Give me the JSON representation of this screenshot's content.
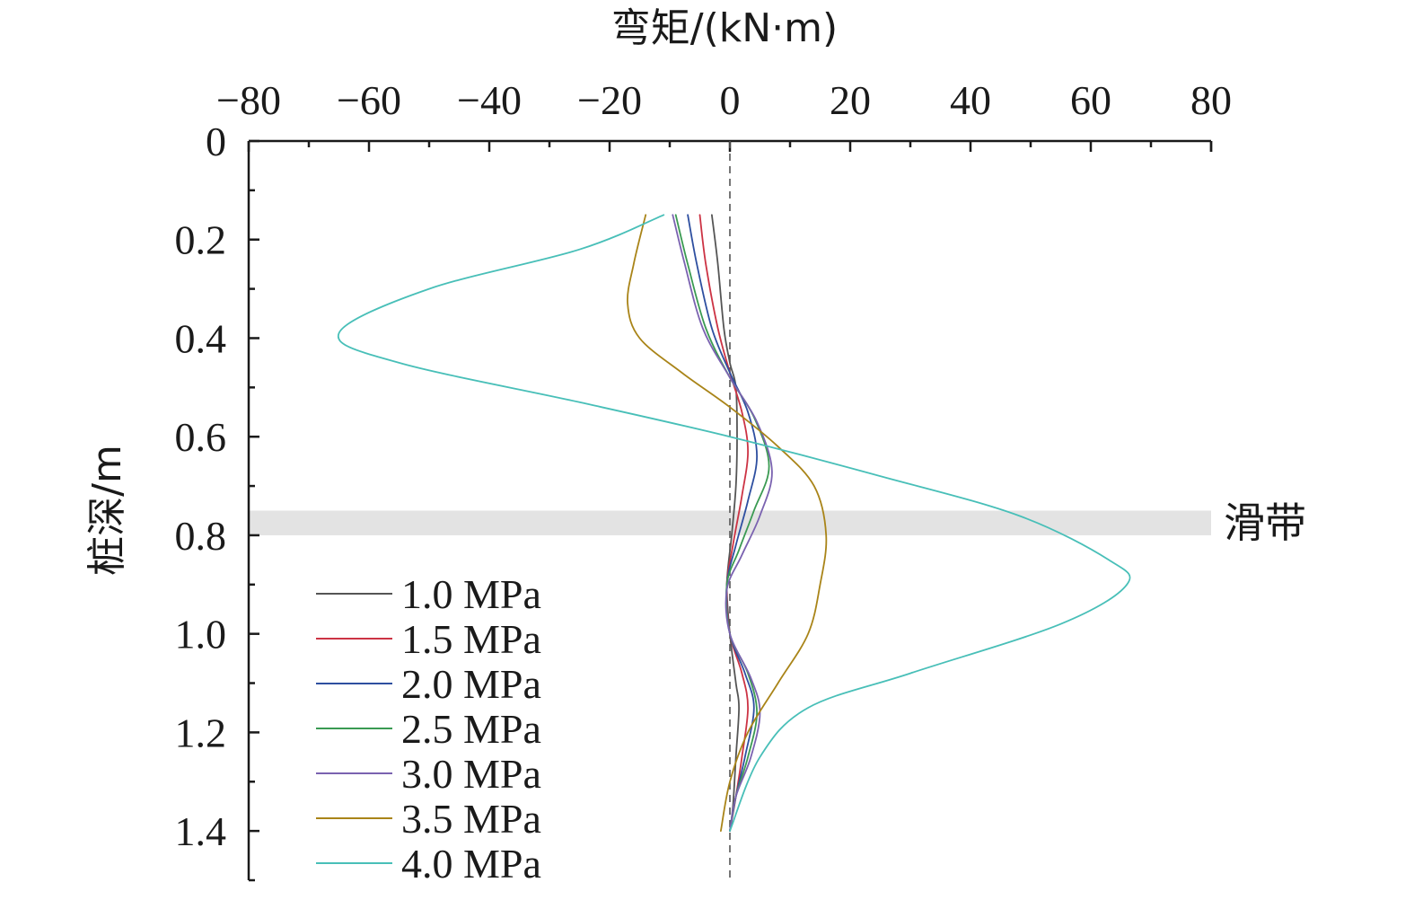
{
  "chart_data": {
    "type": "line",
    "xlabel": "弯矩/(kN·m)",
    "ylabel": "桩深/m",
    "xlim": [
      -80,
      80
    ],
    "ylim": [
      0,
      1.5
    ],
    "y_inverted": true,
    "x_axis_position": "top",
    "x_ticks": [
      -80,
      -60,
      -40,
      -20,
      0,
      20,
      40,
      60,
      80
    ],
    "x_tick_labels": [
      "−80",
      "−60",
      "−40",
      "−20",
      "0",
      "20",
      "40",
      "60",
      "80"
    ],
    "y_ticks": [
      0,
      0.2,
      0.4,
      0.6,
      0.8,
      1.0,
      1.2,
      1.4
    ],
    "y_tick_labels": [
      "0",
      "0.2",
      "0.4",
      "0.6",
      "0.8",
      "1.0",
      "1.2",
      "1.4"
    ],
    "grid": false,
    "legend_position": "bottom-left",
    "zero_reference_line": "dashed",
    "shaded_band": {
      "label": "滑带",
      "depth_range": [
        0.75,
        0.8
      ],
      "color": "#e3e3e3"
    },
    "series": [
      {
        "name": "1.0 MPa",
        "color": "#555555",
        "points": [
          [
            -3,
            0.15
          ],
          [
            -2,
            0.25
          ],
          [
            -1,
            0.38
          ],
          [
            0,
            0.45
          ],
          [
            1,
            0.5
          ],
          [
            1.2,
            0.6
          ],
          [
            1,
            0.7
          ],
          [
            0.3,
            0.8
          ],
          [
            -0.5,
            0.9
          ],
          [
            0,
            1.0
          ],
          [
            1,
            1.1
          ],
          [
            1.5,
            1.15
          ],
          [
            1,
            1.25
          ],
          [
            0.5,
            1.35
          ],
          [
            0,
            1.4
          ]
        ]
      },
      {
        "name": "1.5 MPa",
        "color": "#cc3344",
        "points": [
          [
            -5,
            0.15
          ],
          [
            -4,
            0.25
          ],
          [
            -2,
            0.38
          ],
          [
            0,
            0.47
          ],
          [
            2,
            0.55
          ],
          [
            3,
            0.63
          ],
          [
            2,
            0.72
          ],
          [
            0.5,
            0.82
          ],
          [
            -0.5,
            0.9
          ],
          [
            0,
            1.0
          ],
          [
            2,
            1.08
          ],
          [
            3,
            1.15
          ],
          [
            2,
            1.25
          ],
          [
            1,
            1.33
          ],
          [
            0,
            1.4
          ]
        ]
      },
      {
        "name": "2.0 MPa",
        "color": "#2e4fa0",
        "points": [
          [
            -7,
            0.15
          ],
          [
            -5.5,
            0.25
          ],
          [
            -3,
            0.38
          ],
          [
            0,
            0.47
          ],
          [
            3,
            0.55
          ],
          [
            4.5,
            0.64
          ],
          [
            3,
            0.73
          ],
          [
            1,
            0.82
          ],
          [
            -0.5,
            0.9
          ],
          [
            0,
            1.0
          ],
          [
            2.5,
            1.08
          ],
          [
            4,
            1.15
          ],
          [
            2.5,
            1.25
          ],
          [
            1,
            1.33
          ],
          [
            0,
            1.4
          ]
        ]
      },
      {
        "name": "2.5 MPa",
        "color": "#3a9a52",
        "points": [
          [
            -9,
            0.15
          ],
          [
            -7,
            0.25
          ],
          [
            -4,
            0.38
          ],
          [
            0,
            0.48
          ],
          [
            4,
            0.56
          ],
          [
            6.5,
            0.66
          ],
          [
            4,
            0.75
          ],
          [
            1.5,
            0.83
          ],
          [
            -0.5,
            0.9
          ],
          [
            0,
            1.0
          ],
          [
            3,
            1.08
          ],
          [
            4.5,
            1.16
          ],
          [
            3,
            1.25
          ],
          [
            1,
            1.33
          ],
          [
            0,
            1.4
          ]
        ]
      },
      {
        "name": "3.0 MPa",
        "color": "#7a62b0",
        "points": [
          [
            -9.5,
            0.15
          ],
          [
            -7.5,
            0.25
          ],
          [
            -4.5,
            0.38
          ],
          [
            0,
            0.48
          ],
          [
            4.5,
            0.57
          ],
          [
            7,
            0.67
          ],
          [
            5,
            0.76
          ],
          [
            2,
            0.84
          ],
          [
            -0.5,
            0.91
          ],
          [
            0,
            1.0
          ],
          [
            3.5,
            1.09
          ],
          [
            5,
            1.16
          ],
          [
            3.5,
            1.25
          ],
          [
            1,
            1.33
          ],
          [
            0,
            1.4
          ]
        ]
      },
      {
        "name": "3.5 MPa",
        "color": "#a98418",
        "points": [
          [
            -14,
            0.15
          ],
          [
            -16,
            0.25
          ],
          [
            -17,
            0.33
          ],
          [
            -15,
            0.4
          ],
          [
            -8,
            0.47
          ],
          [
            0,
            0.54
          ],
          [
            8,
            0.62
          ],
          [
            14,
            0.7
          ],
          [
            16,
            0.8
          ],
          [
            15,
            0.9
          ],
          [
            13,
            1.0
          ],
          [
            8,
            1.1
          ],
          [
            3,
            1.2
          ],
          [
            0,
            1.3
          ],
          [
            -1.5,
            1.4
          ]
        ]
      },
      {
        "name": "4.0 MPa",
        "color": "#48bfb8",
        "points": [
          [
            -11,
            0.15
          ],
          [
            -25,
            0.22
          ],
          [
            -50,
            0.3
          ],
          [
            -65,
            0.39
          ],
          [
            -55,
            0.45
          ],
          [
            -25,
            0.53
          ],
          [
            0,
            0.6
          ],
          [
            25,
            0.68
          ],
          [
            48,
            0.76
          ],
          [
            63,
            0.85
          ],
          [
            66,
            0.9
          ],
          [
            55,
            0.98
          ],
          [
            30,
            1.08
          ],
          [
            13,
            1.15
          ],
          [
            5,
            1.25
          ],
          [
            0,
            1.4
          ]
        ]
      }
    ]
  }
}
